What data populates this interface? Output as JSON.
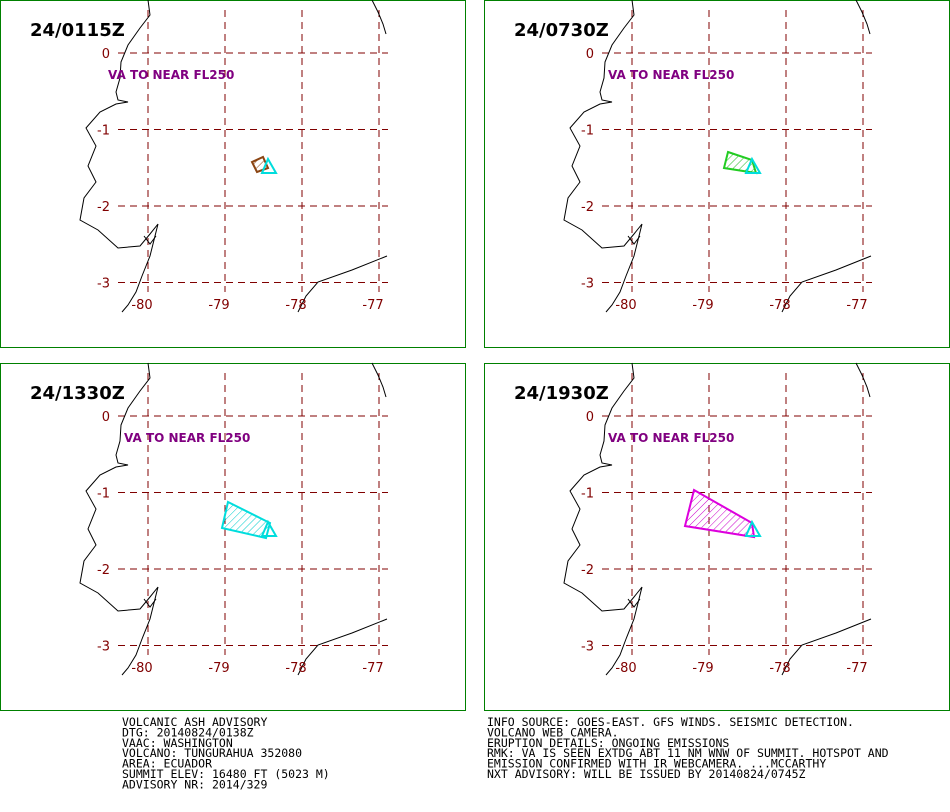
{
  "panels": [
    {
      "time": "24/0115Z",
      "annotation": "VA TO NEAR FL250"
    },
    {
      "time": "24/0730Z",
      "annotation": "VA TO NEAR FL250"
    },
    {
      "time": "24/1330Z",
      "annotation": "VA TO NEAR FL250"
    },
    {
      "time": "24/1930Z",
      "annotation": "VA TO NEAR FL250"
    }
  ],
  "lat_ticks": [
    0,
    -1,
    -2,
    -3
  ],
  "lon_ticks": [
    -80,
    -79,
    -78,
    -77
  ],
  "advisory_left": [
    "VOLCANIC ASH ADVISORY",
    "DTG: 20140824/0138Z",
    "VAAC: WASHINGTON",
    "VOLCANO: TUNGURAHUA 352080",
    "AREA: ECUADOR",
    "SUMMIT ELEV: 16480 FT (5023 M)",
    "ADVISORY NR: 2014/329"
  ],
  "advisory_right": [
    "INFO SOURCE: GOES-EAST. GFS WINDS. SEISMIC DETECTION.",
    "VOLCANO WEB CAMERA.",
    "ERUPTION DETAILS: ONGOING EMISSIONS",
    "RMK: VA IS SEEN EXTDG ABT 11 NM WNW OF SUMMIT. HOTSPOT AND",
    "EMISSION CONFIRMED WITH IR WEBCAMERA. ...MCCARTHY",
    "NXT ADVISORY: WILL BE ISSUED BY 20140824/0745Z"
  ]
}
